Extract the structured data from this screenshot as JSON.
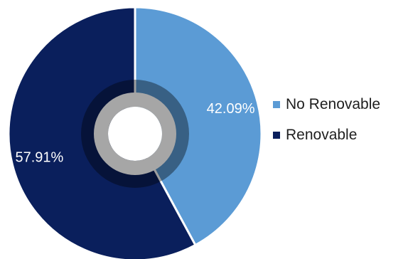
{
  "chart_data": {
    "type": "pie",
    "title": "",
    "categories": [
      "No Renovable",
      "Renovable"
    ],
    "values": [
      42.09,
      57.91
    ],
    "value_labels": [
      "42.09%",
      "57.91%"
    ],
    "colors": [
      "#5B9BD5",
      "#0A1F5C"
    ],
    "legend": {
      "position": "right",
      "entries": [
        "No Renovable",
        "Renovable"
      ]
    },
    "hole_ring_color": "#A6A6A6"
  }
}
